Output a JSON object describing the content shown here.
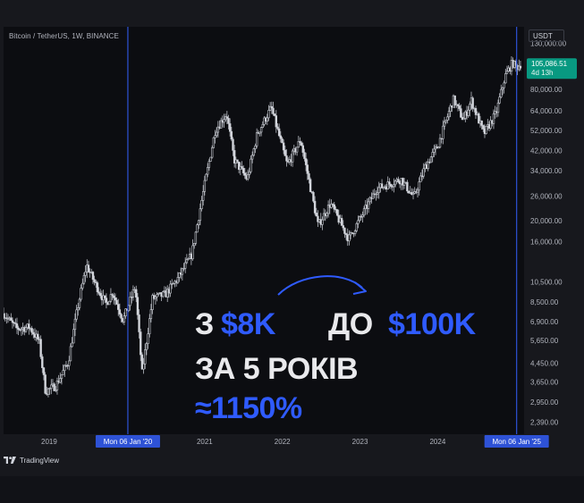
{
  "header": {
    "symbol": "Bitcoin / TetherUS, 1W, BINANCE",
    "currency": "USDT"
  },
  "price_badge": {
    "price": "105,086.51",
    "countdown": "4d 13h"
  },
  "vline_labels": [
    "Mon 06 Jan '20",
    "Mon 06 Jan '25"
  ],
  "footer": {
    "brand": "TradingView"
  },
  "overlay": {
    "line1_a": "З",
    "line1_b": "$8K",
    "line1_c": "ДО",
    "line1_d": "$100K",
    "line2": "ЗА 5 РОКІВ",
    "line3": "≈1150%"
  },
  "colors": {
    "accent": "#2f5bff",
    "price_badge": "#089981",
    "vline": "#2e52d6"
  },
  "chart_data": {
    "type": "candlestick",
    "title": "Bitcoin / TetherUS, 1W, BINANCE",
    "yscale": "log",
    "ylim": [
      2100,
      155000
    ],
    "xlim": [
      "2018-06-01",
      "2025-02-10"
    ],
    "x_tick_labels": [
      "2019",
      "2021",
      "2022",
      "2023",
      "2024"
    ],
    "x_ticks": [
      "2019-01-01",
      "2021-01-01",
      "2022-01-01",
      "2023-01-01",
      "2024-01-01"
    ],
    "y_tick_labels": [
      "130,000.00",
      "80,000.00",
      "64,000.00",
      "52,000.00",
      "42,000.00",
      "34,000.00",
      "26,000.00",
      "20,000.00",
      "16,000.00",
      "10,500.00",
      "8,500.00",
      "6,900.00",
      "5,650.00",
      "4,450.00",
      "3,650.00",
      "2,950.00",
      "2,390.00"
    ],
    "y_ticks": [
      130000,
      80000,
      64000,
      52000,
      42000,
      34000,
      26000,
      20000,
      16000,
      10500,
      8500,
      6900,
      5650,
      4450,
      3650,
      2950,
      2390
    ],
    "vertical_lines": [
      "2020-01-06",
      "2025-01-06"
    ],
    "last_price": 105086.51,
    "series_path": [
      [
        "2018-06-01",
        7500
      ],
      [
        "2018-08-01",
        6400
      ],
      [
        "2018-10-01",
        6500
      ],
      [
        "2018-11-15",
        5600
      ],
      [
        "2018-12-15",
        3300
      ],
      [
        "2019-02-01",
        3500
      ],
      [
        "2019-04-01",
        4500
      ],
      [
        "2019-05-15",
        8000
      ],
      [
        "2019-06-26",
        12500
      ],
      [
        "2019-08-01",
        10500
      ],
      [
        "2019-09-25",
        8300
      ],
      [
        "2019-10-26",
        9400
      ],
      [
        "2019-12-15",
        7000
      ],
      [
        "2020-02-10",
        10000
      ],
      [
        "2020-03-13",
        4000
      ],
      [
        "2020-05-01",
        8800
      ],
      [
        "2020-07-01",
        9200
      ],
      [
        "2020-09-01",
        11000
      ],
      [
        "2020-11-01",
        14000
      ],
      [
        "2020-12-31",
        29000
      ],
      [
        "2021-02-20",
        52000
      ],
      [
        "2021-04-14",
        62000
      ],
      [
        "2021-05-20",
        38000
      ],
      [
        "2021-07-20",
        31000
      ],
      [
        "2021-09-05",
        50000
      ],
      [
        "2021-11-10",
        66000
      ],
      [
        "2022-01-24",
        36000
      ],
      [
        "2022-03-28",
        47000
      ],
      [
        "2022-06-18",
        19000
      ],
      [
        "2022-08-15",
        24000
      ],
      [
        "2022-11-09",
        16500
      ],
      [
        "2023-01-20",
        22000
      ],
      [
        "2023-03-20",
        28000
      ],
      [
        "2023-07-13",
        31000
      ],
      [
        "2023-09-11",
        25500
      ],
      [
        "2023-11-01",
        35000
      ],
      [
        "2024-01-01",
        44000
      ],
      [
        "2024-03-14",
        72000
      ],
      [
        "2024-05-01",
        58000
      ],
      [
        "2024-06-07",
        71000
      ],
      [
        "2024-08-05",
        50000
      ],
      [
        "2024-10-01",
        62000
      ],
      [
        "2024-11-13",
        92000
      ],
      [
        "2024-12-17",
        106000
      ],
      [
        "2025-01-06",
        101000
      ],
      [
        "2025-01-27",
        105086
      ]
    ]
  }
}
